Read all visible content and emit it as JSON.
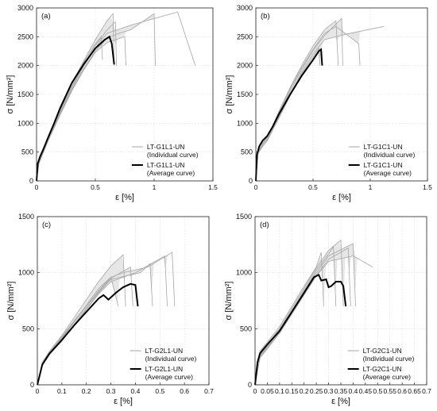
{
  "chart_data": [
    {
      "type": "line",
      "panel_label": "(a)",
      "xlabel": "ε [%]",
      "ylabel": "σ [N/mm²]",
      "xlim": [
        0,
        1.5
      ],
      "ylim": [
        0,
        3000
      ],
      "xticks": [
        "0",
        "0.5",
        "1",
        "1.5"
      ],
      "yticks": [
        "0",
        "500",
        "1000",
        "1500",
        "2000",
        "2500",
        "3000"
      ],
      "grid": true,
      "legend_position": "lower-right",
      "series": [
        {
          "name": "LT-G1L1-UN",
          "description": "(Individual curve)",
          "style": "individual"
        },
        {
          "name": "LT-G1L1-UN",
          "description": "(Average curve)",
          "style": "average",
          "x": [
            0,
            0.01,
            0.03,
            0.06,
            0.1,
            0.15,
            0.2,
            0.3,
            0.4,
            0.5,
            0.58,
            0.62,
            0.64,
            0.66
          ],
          "y": [
            0,
            300,
            420,
            560,
            760,
            1000,
            1260,
            1700,
            2020,
            2300,
            2450,
            2500,
            2380,
            2020
          ]
        }
      ],
      "individual_curves": [
        {
          "x": [
            0,
            0.02,
            0.1,
            0.2,
            0.3,
            0.4,
            0.5,
            0.6,
            0.65,
            0.66
          ],
          "y": [
            0,
            350,
            780,
            1250,
            1700,
            2080,
            2450,
            2780,
            2900,
            2000
          ]
        },
        {
          "x": [
            0,
            0.02,
            0.1,
            0.2,
            0.3,
            0.4,
            0.5,
            0.6,
            0.67,
            0.68
          ],
          "y": [
            0,
            330,
            740,
            1200,
            1640,
            2000,
            2350,
            2620,
            2760,
            2000
          ]
        },
        {
          "x": [
            0,
            0.02,
            0.1,
            0.2,
            0.3,
            0.4,
            0.5,
            0.6,
            0.7,
            0.8,
            1.0,
            1.01
          ],
          "y": [
            0,
            300,
            700,
            1150,
            1580,
            1940,
            2250,
            2480,
            2560,
            2620,
            2900,
            2000
          ]
        },
        {
          "x": [
            0,
            0.02,
            0.1,
            0.2,
            0.3,
            0.4,
            0.5,
            0.55,
            0.6,
            0.8,
            1.2,
            1.35
          ],
          "y": [
            0,
            320,
            720,
            1180,
            1610,
            1990,
            2300,
            2450,
            2560,
            2700,
            2930,
            2000
          ]
        },
        {
          "x": [
            0,
            0.02,
            0.1,
            0.2,
            0.3,
            0.4,
            0.5,
            0.55,
            0.56
          ],
          "y": [
            0,
            340,
            760,
            1220,
            1680,
            2050,
            2380,
            2500,
            2100
          ]
        },
        {
          "x": [
            0,
            0.02,
            0.1,
            0.2,
            0.3,
            0.4,
            0.5,
            0.6,
            0.75,
            0.76
          ],
          "y": [
            0,
            310,
            700,
            1140,
            1560,
            1920,
            2230,
            2400,
            2500,
            2000
          ]
        }
      ]
    },
    {
      "type": "line",
      "panel_label": "(b)",
      "xlabel": "ε [%]",
      "ylabel": "σ [N/mm²]",
      "xlim": [
        0,
        1.5
      ],
      "ylim": [
        0,
        3000
      ],
      "xticks": [
        "0",
        "0.5",
        "1",
        "1.5"
      ],
      "yticks": [
        "0",
        "500",
        "1000",
        "1500",
        "2000",
        "2500",
        "3000"
      ],
      "grid": true,
      "legend_position": "lower-right",
      "series": [
        {
          "name": "LT-G1C1-UN",
          "description": "(Individual curve)",
          "style": "individual"
        },
        {
          "name": "LT-G1C1-UN",
          "description": "(Average curve)",
          "style": "average",
          "x": [
            0,
            0.01,
            0.03,
            0.06,
            0.1,
            0.15,
            0.2,
            0.3,
            0.4,
            0.5,
            0.55,
            0.57,
            0.58
          ],
          "y": [
            0,
            450,
            600,
            700,
            780,
            950,
            1150,
            1500,
            1820,
            2100,
            2250,
            2280,
            2000
          ]
        }
      ],
      "individual_curves": [
        {
          "x": [
            0,
            0.02,
            0.1,
            0.2,
            0.3,
            0.4,
            0.5,
            0.6,
            0.7,
            0.72
          ],
          "y": [
            0,
            520,
            750,
            1200,
            1620,
            2000,
            2340,
            2620,
            2780,
            2000
          ]
        },
        {
          "x": [
            0,
            0.02,
            0.1,
            0.2,
            0.3,
            0.4,
            0.5,
            0.6,
            0.75,
            0.76
          ],
          "y": [
            0,
            480,
            720,
            1150,
            1560,
            1930,
            2260,
            2520,
            2820,
            2000
          ]
        },
        {
          "x": [
            0,
            0.02,
            0.1,
            0.2,
            0.3,
            0.4,
            0.5,
            0.6,
            0.8,
            1.12
          ],
          "y": [
            0,
            500,
            700,
            1100,
            1500,
            1880,
            2200,
            2450,
            2550,
            2680
          ]
        },
        {
          "x": [
            0,
            0.02,
            0.1,
            0.2,
            0.3,
            0.4,
            0.5,
            0.6,
            0.7,
            0.9,
            0.91
          ],
          "y": [
            0,
            560,
            760,
            1180,
            1600,
            1960,
            2280,
            2560,
            2680,
            2380,
            2000
          ]
        },
        {
          "x": [
            0,
            0.02,
            0.1,
            0.2,
            0.3,
            0.4,
            0.5,
            0.55,
            0.56
          ],
          "y": [
            0,
            520,
            700,
            1080,
            1480,
            1850,
            2150,
            2300,
            2000
          ]
        }
      ]
    },
    {
      "type": "line",
      "panel_label": "(c)",
      "xlabel": "ε [%]",
      "ylabel": "σ [N/mm²]",
      "xlim": [
        0,
        0.7
      ],
      "ylim": [
        0,
        1500
      ],
      "xticks": [
        "0",
        "0.1",
        "0.2",
        "0.3",
        "0.4",
        "0.5",
        "0.6",
        "0.7"
      ],
      "yticks": [
        "0",
        "500",
        "1000",
        "1500"
      ],
      "grid": true,
      "legend_position": "lower-right",
      "series": [
        {
          "name": "LT-G2L1-UN",
          "description": "(Individual curve)",
          "style": "individual"
        },
        {
          "name": "LT-G2L1-UN",
          "description": "(Average curve)",
          "style": "average",
          "x": [
            0,
            0.02,
            0.05,
            0.1,
            0.15,
            0.2,
            0.25,
            0.27,
            0.29,
            0.32,
            0.35,
            0.38,
            0.4,
            0.41
          ],
          "y": [
            0,
            180,
            280,
            400,
            530,
            650,
            770,
            800,
            760,
            820,
            870,
            900,
            890,
            700
          ]
        }
      ],
      "individual_curves": [
        {
          "x": [
            0,
            0.02,
            0.05,
            0.1,
            0.15,
            0.2,
            0.25,
            0.3,
            0.35,
            0.36
          ],
          "y": [
            0,
            190,
            300,
            440,
            600,
            760,
            920,
            1060,
            1160,
            700
          ]
        },
        {
          "x": [
            0,
            0.02,
            0.05,
            0.1,
            0.15,
            0.2,
            0.25,
            0.3,
            0.35,
            0.45,
            0.55,
            0.56
          ],
          "y": [
            0,
            180,
            280,
            410,
            560,
            710,
            860,
            960,
            1000,
            1050,
            1180,
            700
          ]
        },
        {
          "x": [
            0,
            0.02,
            0.05,
            0.1,
            0.15,
            0.2,
            0.25,
            0.3,
            0.4,
            0.52,
            0.53
          ],
          "y": [
            0,
            170,
            270,
            390,
            530,
            670,
            810,
            920,
            1000,
            1150,
            700
          ]
        },
        {
          "x": [
            0,
            0.02,
            0.05,
            0.1,
            0.15,
            0.2,
            0.25,
            0.3,
            0.38,
            0.39
          ],
          "y": [
            0,
            200,
            300,
            430,
            570,
            700,
            830,
            950,
            1050,
            700
          ]
        },
        {
          "x": [
            0,
            0.02,
            0.05,
            0.1,
            0.15,
            0.2,
            0.25,
            0.3,
            0.42,
            0.46,
            0.47
          ],
          "y": [
            0,
            175,
            270,
            400,
            540,
            680,
            820,
            940,
            1000,
            1080,
            700
          ]
        },
        {
          "x": [
            0,
            0.02,
            0.05,
            0.1,
            0.15,
            0.2,
            0.25,
            0.3,
            0.33
          ],
          "y": [
            0,
            185,
            285,
            420,
            560,
            700,
            840,
            960,
            700
          ]
        }
      ]
    },
    {
      "type": "line",
      "panel_label": "(d)",
      "xlabel": "ε [%]",
      "ylabel": "σ [N/mm²]",
      "xlim": [
        0,
        0.7
      ],
      "ylim": [
        0,
        1500
      ],
      "xticks": [
        "0",
        "0.05",
        "0.1",
        "0.15",
        "0.2",
        "0.25",
        "0.3",
        "0.35",
        "0.4",
        "0.45",
        "0.5",
        "0.55",
        "0.6",
        "0.65",
        "0.7"
      ],
      "yticks": [
        "0",
        "500",
        "1000",
        "1500"
      ],
      "grid": true,
      "legend_position": "lower-right",
      "series": [
        {
          "name": "LT-G2C1-UN",
          "description": "(Individual curve)",
          "style": "individual"
        },
        {
          "name": "LT-G2C1-UN",
          "description": "(Average curve)",
          "style": "average",
          "x": [
            0,
            0.01,
            0.02,
            0.05,
            0.1,
            0.15,
            0.2,
            0.24,
            0.26,
            0.27,
            0.29,
            0.3,
            0.31,
            0.33,
            0.35,
            0.36,
            0.37
          ],
          "y": [
            0,
            200,
            280,
            360,
            480,
            650,
            820,
            960,
            980,
            930,
            940,
            870,
            880,
            920,
            920,
            880,
            700
          ]
        }
      ],
      "individual_curves": [
        {
          "x": [
            0,
            0.02,
            0.05,
            0.1,
            0.15,
            0.2,
            0.25,
            0.27,
            0.28
          ],
          "y": [
            0,
            300,
            380,
            520,
            700,
            880,
            1050,
            1180,
            700
          ]
        },
        {
          "x": [
            0,
            0.02,
            0.05,
            0.1,
            0.15,
            0.2,
            0.25,
            0.3,
            0.35,
            0.36
          ],
          "y": [
            0,
            280,
            360,
            500,
            680,
            860,
            1040,
            1200,
            1290,
            700
          ]
        },
        {
          "x": [
            0,
            0.02,
            0.05,
            0.1,
            0.15,
            0.2,
            0.25,
            0.3,
            0.4,
            0.41
          ],
          "y": [
            0,
            260,
            340,
            480,
            650,
            830,
            1000,
            1150,
            1260,
            700
          ]
        },
        {
          "x": [
            0,
            0.02,
            0.05,
            0.1,
            0.15,
            0.2,
            0.25,
            0.3,
            0.4,
            0.48
          ],
          "y": [
            0,
            240,
            320,
            460,
            630,
            800,
            970,
            1100,
            1150,
            1050
          ]
        },
        {
          "x": [
            0,
            0.02,
            0.05,
            0.1,
            0.15,
            0.2,
            0.25,
            0.3,
            0.32,
            0.33
          ],
          "y": [
            0,
            270,
            350,
            490,
            660,
            840,
            1020,
            1170,
            1230,
            700
          ]
        },
        {
          "x": [
            0,
            0.02,
            0.05,
            0.1,
            0.15,
            0.2,
            0.25,
            0.3,
            0.38,
            0.39
          ],
          "y": [
            0,
            250,
            330,
            470,
            640,
            810,
            980,
            1120,
            1220,
            700
          ]
        }
      ]
    }
  ]
}
